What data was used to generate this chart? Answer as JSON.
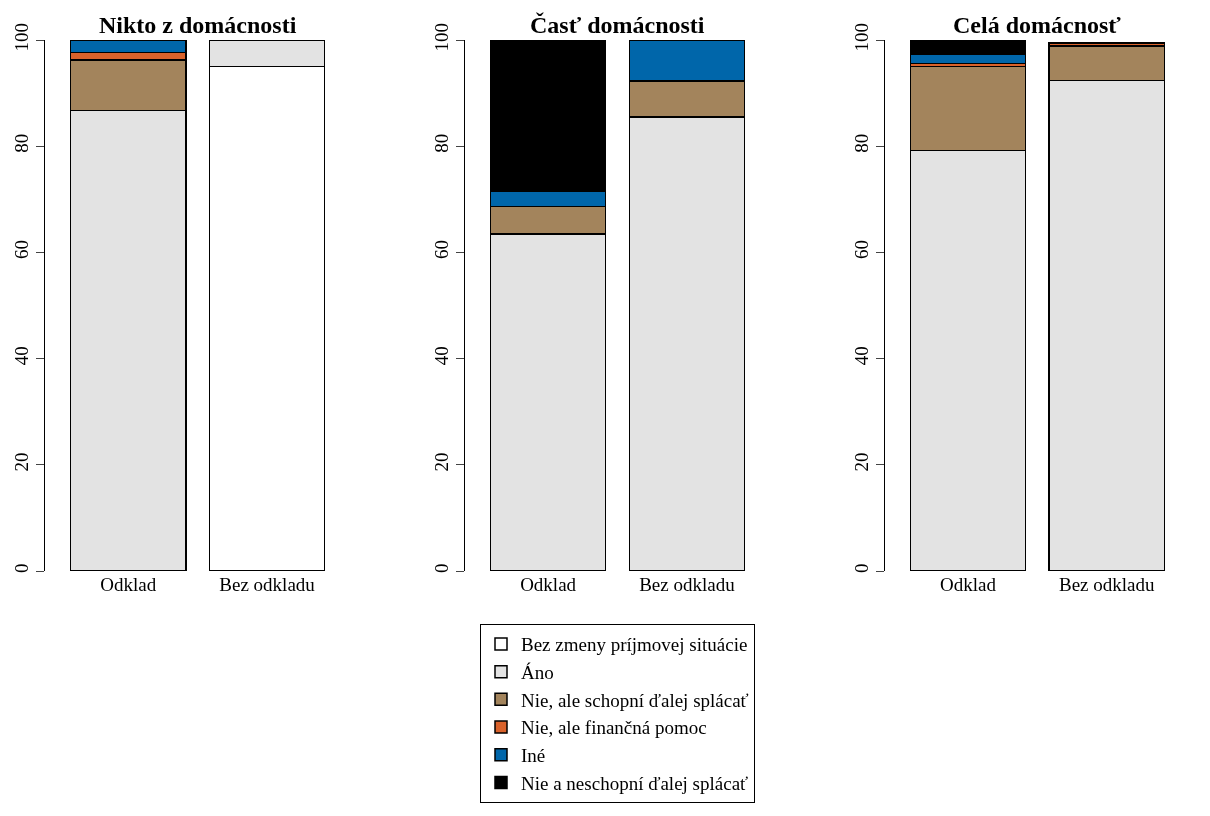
{
  "chart_data": [
    {
      "type": "bar",
      "stacked": true,
      "title": "Nikto z domácnosti",
      "categories": [
        "Odklad",
        "Bez odkladu"
      ],
      "ylim": [
        0,
        100
      ],
      "yticks": [
        0,
        20,
        40,
        60,
        80,
        100
      ],
      "grid": false,
      "legend": "bottom",
      "series": [
        {
          "name": "Bez zmeny príjmovej situácie",
          "color": "#ffffff",
          "values": [
            0,
            95
          ]
        },
        {
          "name": "Áno",
          "color": "#e3e3e3",
          "values": [
            86.7,
            5
          ]
        },
        {
          "name": "Nie, ale schopní ďalej splácať",
          "color": "#a3845c",
          "values": [
            9.5,
            0
          ]
        },
        {
          "name": "Nie, ale finančná pomoc",
          "color": "#d9622b",
          "values": [
            1.4,
            0
          ]
        },
        {
          "name": "Iné",
          "color": "#0066aa",
          "values": [
            2.4,
            0
          ]
        },
        {
          "name": "Nie a neschopní ďalej splácať",
          "color": "#000000",
          "values": [
            0,
            0
          ]
        }
      ]
    },
    {
      "type": "bar",
      "stacked": true,
      "title": "Časť domácnosti",
      "categories": [
        "Odklad",
        "Bez odkladu"
      ],
      "ylim": [
        0,
        100
      ],
      "yticks": [
        0,
        20,
        40,
        60,
        80,
        100
      ],
      "grid": false,
      "series": [
        {
          "color": "#ffffff",
          "values": [
            0,
            0
          ]
        },
        {
          "color": "#e3e3e3",
          "values": [
            63.5,
            85.5
          ]
        },
        {
          "color": "#a3845c",
          "values": [
            5.1,
            6.8
          ]
        },
        {
          "color": "#d9622b",
          "values": [
            0,
            0
          ]
        },
        {
          "color": "#0066aa",
          "values": [
            3,
            7.7
          ]
        },
        {
          "color": "#000000",
          "values": [
            28.4,
            0
          ]
        }
      ]
    },
    {
      "type": "bar",
      "stacked": true,
      "title": "Celá domácnosť",
      "categories": [
        "Odklad",
        "Bez odkladu"
      ],
      "ylim": [
        0,
        100
      ],
      "yticks": [
        0,
        20,
        40,
        60,
        80,
        100
      ],
      "grid": false,
      "series": [
        {
          "color": "#ffffff",
          "values": [
            0,
            null
          ]
        },
        {
          "color": "#e3e3e3",
          "values": [
            79.2,
            92.4
          ]
        },
        {
          "color": "#a3845c",
          "values": [
            15.8,
            6.5
          ]
        },
        {
          "color": "#d9622b",
          "values": [
            0.6,
            0.5
          ]
        },
        {
          "color": "#0066aa",
          "values": [
            1.7,
            null
          ]
        },
        {
          "color": "#000000",
          "values": [
            2.7,
            0
          ]
        }
      ]
    }
  ]
}
